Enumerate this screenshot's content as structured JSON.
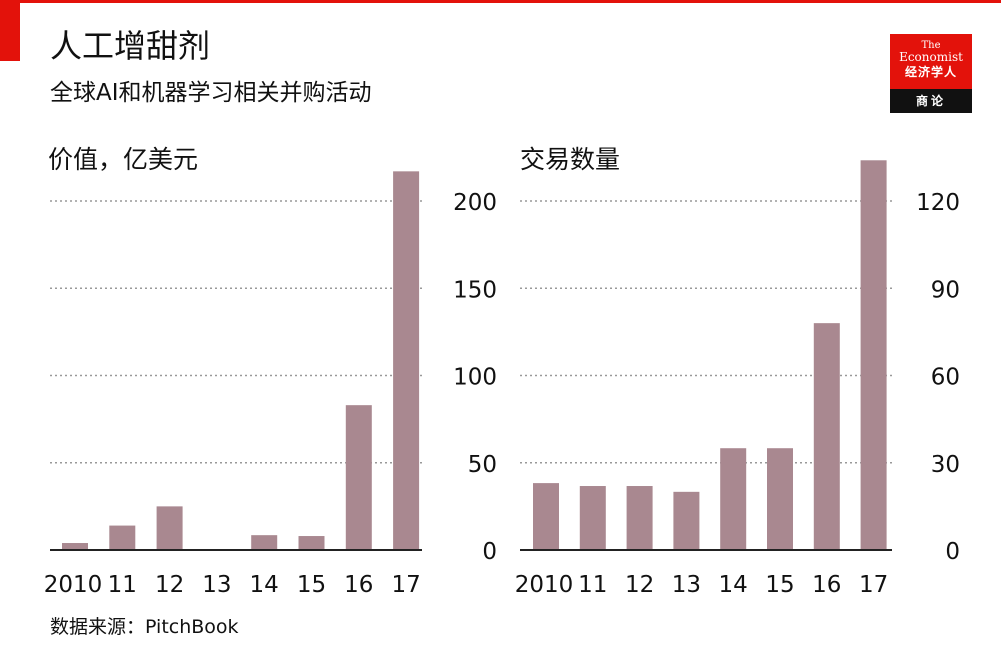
{
  "header": {
    "title": "人工增甜剂",
    "subtitle": "全球AI和机器学习相关并购活动"
  },
  "brand": {
    "the": "The",
    "economist": "Economist",
    "cn_name": "经济学人",
    "section": "商论",
    "accent": "#e3120b"
  },
  "colors": {
    "bar": "#a98890",
    "grid": "#999999",
    "axis": "#222222"
  },
  "source": "数据来源：PitchBook",
  "chart_data": [
    {
      "type": "bar",
      "title": "价值，亿美元",
      "categories": [
        "2010",
        "11",
        "12",
        "13",
        "14",
        "15",
        "16",
        "17"
      ],
      "values": [
        4,
        14,
        25,
        0.5,
        8.5,
        8,
        83,
        217
      ],
      "ylim": [
        0,
        200
      ],
      "yticks": [
        0,
        50,
        100,
        150,
        200
      ],
      "grid": true
    },
    {
      "type": "bar",
      "title": "交易数量",
      "categories": [
        "2010",
        "11",
        "12",
        "13",
        "14",
        "15",
        "16",
        "17"
      ],
      "values": [
        23,
        22,
        22,
        20,
        35,
        35,
        78,
        134
      ],
      "ylim": [
        0,
        120
      ],
      "yticks": [
        0,
        30,
        60,
        90,
        120
      ],
      "grid": true
    }
  ]
}
